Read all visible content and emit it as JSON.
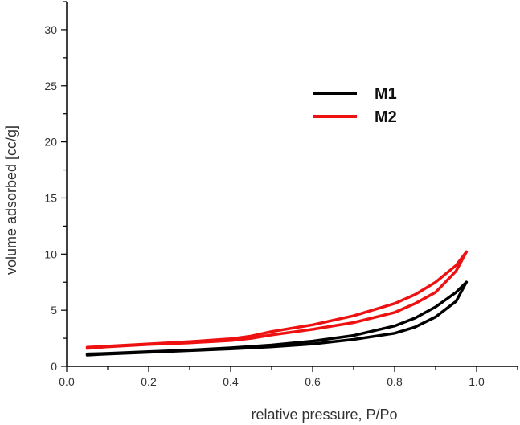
{
  "chart_data": {
    "type": "line",
    "title": "",
    "xlabel": "relative pressure, P/Po",
    "ylabel": "volume adsorbed [cc/g]",
    "xlim": [
      0.0,
      1.1
    ],
    "ylim": [
      0,
      32.5
    ],
    "xticks": [
      "0.0",
      "0.2",
      "0.4",
      "0.6",
      "0.8",
      "1.0"
    ],
    "yticks": [
      "0",
      "5",
      "10",
      "15",
      "20",
      "25",
      "30"
    ],
    "legend_position": "upper-middle",
    "grid": false,
    "series": [
      {
        "name": "M1",
        "color": "#000000",
        "adsorption": [
          [
            0.05,
            1.0
          ],
          [
            0.1,
            1.1
          ],
          [
            0.2,
            1.25
          ],
          [
            0.3,
            1.4
          ],
          [
            0.4,
            1.55
          ],
          [
            0.5,
            1.75
          ],
          [
            0.6,
            2.0
          ],
          [
            0.7,
            2.4
          ],
          [
            0.8,
            2.95
          ],
          [
            0.85,
            3.5
          ],
          [
            0.9,
            4.4
          ],
          [
            0.95,
            5.8
          ],
          [
            0.975,
            7.5
          ]
        ],
        "desorption": [
          [
            0.975,
            7.5
          ],
          [
            0.95,
            6.6
          ],
          [
            0.9,
            5.3
          ],
          [
            0.85,
            4.3
          ],
          [
            0.8,
            3.6
          ],
          [
            0.7,
            2.75
          ],
          [
            0.6,
            2.25
          ],
          [
            0.5,
            1.9
          ],
          [
            0.4,
            1.65
          ],
          [
            0.3,
            1.45
          ],
          [
            0.2,
            1.3
          ],
          [
            0.1,
            1.15
          ],
          [
            0.05,
            1.1
          ]
        ]
      },
      {
        "name": "M2",
        "color": "#ee1111",
        "adsorption": [
          [
            0.05,
            1.6
          ],
          [
            0.1,
            1.75
          ],
          [
            0.2,
            1.95
          ],
          [
            0.3,
            2.1
          ],
          [
            0.4,
            2.3
          ],
          [
            0.45,
            2.5
          ],
          [
            0.5,
            2.8
          ],
          [
            0.6,
            3.3
          ],
          [
            0.7,
            3.9
          ],
          [
            0.8,
            4.8
          ],
          [
            0.85,
            5.6
          ],
          [
            0.9,
            6.6
          ],
          [
            0.95,
            8.5
          ],
          [
            0.975,
            10.2
          ]
        ],
        "desorption": [
          [
            0.975,
            10.2
          ],
          [
            0.95,
            9.0
          ],
          [
            0.9,
            7.5
          ],
          [
            0.85,
            6.4
          ],
          [
            0.8,
            5.6
          ],
          [
            0.7,
            4.5
          ],
          [
            0.6,
            3.7
          ],
          [
            0.5,
            3.1
          ],
          [
            0.45,
            2.7
          ],
          [
            0.4,
            2.45
          ],
          [
            0.3,
            2.2
          ],
          [
            0.2,
            2.0
          ],
          [
            0.1,
            1.8
          ],
          [
            0.05,
            1.7
          ]
        ]
      }
    ]
  }
}
